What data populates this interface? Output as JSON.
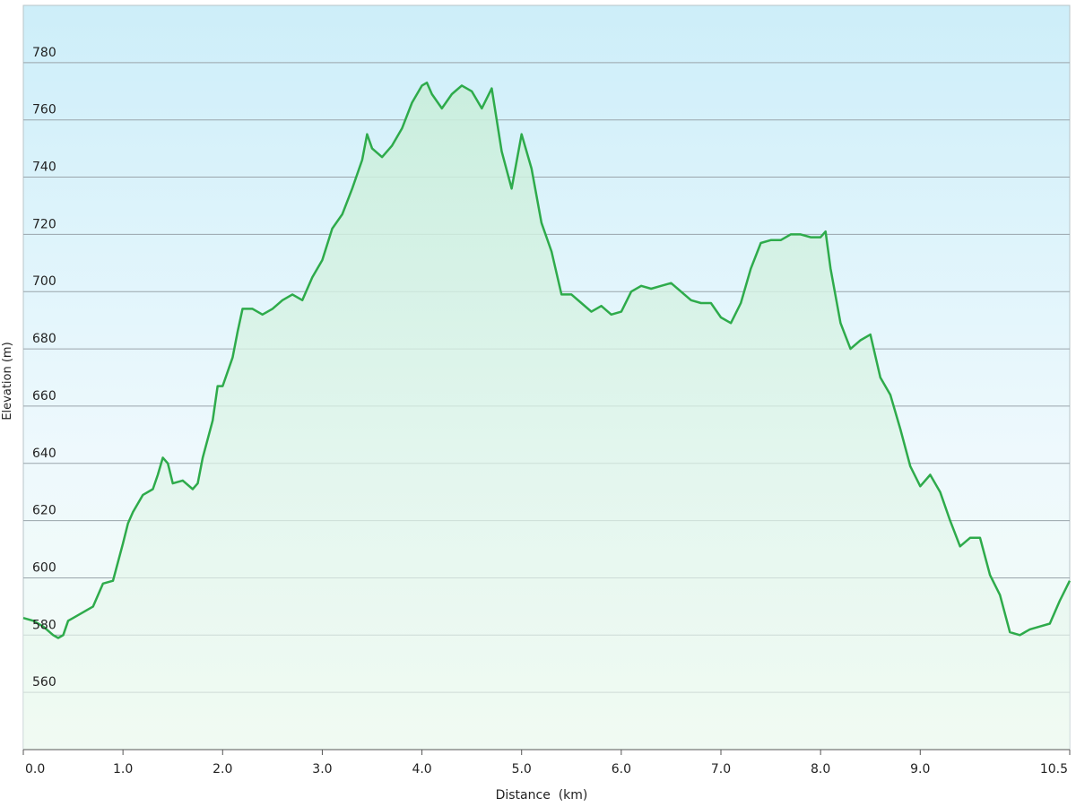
{
  "chart_data": {
    "type": "area-line",
    "x_label": "Distance  (km)",
    "y_label": "Elevation (m)",
    "x": [
      0,
      0.1,
      0.2,
      0.3,
      0.35,
      0.4,
      0.45,
      0.5,
      0.6,
      0.7,
      0.8,
      0.9,
      1.0,
      1.05,
      1.1,
      1.2,
      1.3,
      1.35,
      1.4,
      1.45,
      1.5,
      1.6,
      1.7,
      1.75,
      1.8,
      1.9,
      1.95,
      2.0,
      2.1,
      2.15,
      2.2,
      2.3,
      2.4,
      2.5,
      2.6,
      2.7,
      2.8,
      2.9,
      3.0,
      3.1,
      3.2,
      3.3,
      3.4,
      3.45,
      3.5,
      3.6,
      3.7,
      3.8,
      3.9,
      4.0,
      4.05,
      4.1,
      4.2,
      4.3,
      4.4,
      4.5,
      4.6,
      4.7,
      4.8,
      4.9,
      5.0,
      5.1,
      5.2,
      5.3,
      5.4,
      5.5,
      5.6,
      5.7,
      5.8,
      5.9,
      6.0,
      6.1,
      6.2,
      6.3,
      6.4,
      6.5,
      6.6,
      6.7,
      6.8,
      6.9,
      7.0,
      7.1,
      7.2,
      7.3,
      7.4,
      7.5,
      7.6,
      7.7,
      7.8,
      7.9,
      8.0,
      8.05,
      8.1,
      8.2,
      8.3,
      8.4,
      8.5,
      8.6,
      8.7,
      8.8,
      8.9,
      9.0,
      9.1,
      9.2,
      9.3,
      9.4,
      9.5,
      9.6,
      9.7,
      9.8,
      9.9,
      10.0,
      10.1,
      10.2,
      10.3,
      10.4,
      10.5
    ],
    "series": [
      {
        "color": "#2eab4b",
        "values": [
          586,
          585,
          583,
          580,
          579,
          580,
          585,
          586,
          588,
          590,
          598,
          599,
          612,
          619,
          623,
          629,
          631,
          636,
          642,
          640,
          633,
          634,
          631,
          633,
          642,
          655,
          667,
          667,
          677,
          686,
          694,
          694,
          692,
          694,
          697,
          699,
          697,
          705,
          711,
          722,
          727,
          736,
          746,
          755,
          750,
          747,
          751,
          757,
          766,
          772,
          773,
          769,
          764,
          769,
          772,
          770,
          764,
          771,
          749,
          736,
          755,
          743,
          724,
          714,
          699,
          699,
          696,
          693,
          695,
          692,
          693,
          700,
          702,
          701,
          702,
          703,
          700,
          697,
          696,
          696,
          691,
          689,
          696,
          708,
          717,
          718,
          718,
          720,
          720,
          719,
          719,
          721,
          708,
          689,
          680,
          683,
          685,
          670,
          664,
          652,
          639,
          632,
          636,
          630,
          620,
          611,
          614,
          614,
          601,
          594,
          581,
          580,
          582,
          583,
          584,
          592,
          599
        ]
      }
    ],
    "xlim": [
      0,
      10.5
    ],
    "ylim": [
      540,
      800
    ],
    "xticks": [
      {
        "value": 0,
        "label": "0.0"
      },
      {
        "value": 1,
        "label": "1.0"
      },
      {
        "value": 2,
        "label": "2.0"
      },
      {
        "value": 3,
        "label": "3.0"
      },
      {
        "value": 4,
        "label": "4.0"
      },
      {
        "value": 5,
        "label": "5.0"
      },
      {
        "value": 6,
        "label": "6.0"
      },
      {
        "value": 7,
        "label": "7.0"
      },
      {
        "value": 8,
        "label": "8.0"
      },
      {
        "value": 9,
        "label": "9.0"
      },
      {
        "value": 10.5,
        "label": "10.5"
      }
    ],
    "yticks": [
      560,
      580,
      600,
      620,
      640,
      660,
      680,
      700,
      720,
      740,
      760,
      780
    ],
    "grid": true
  }
}
